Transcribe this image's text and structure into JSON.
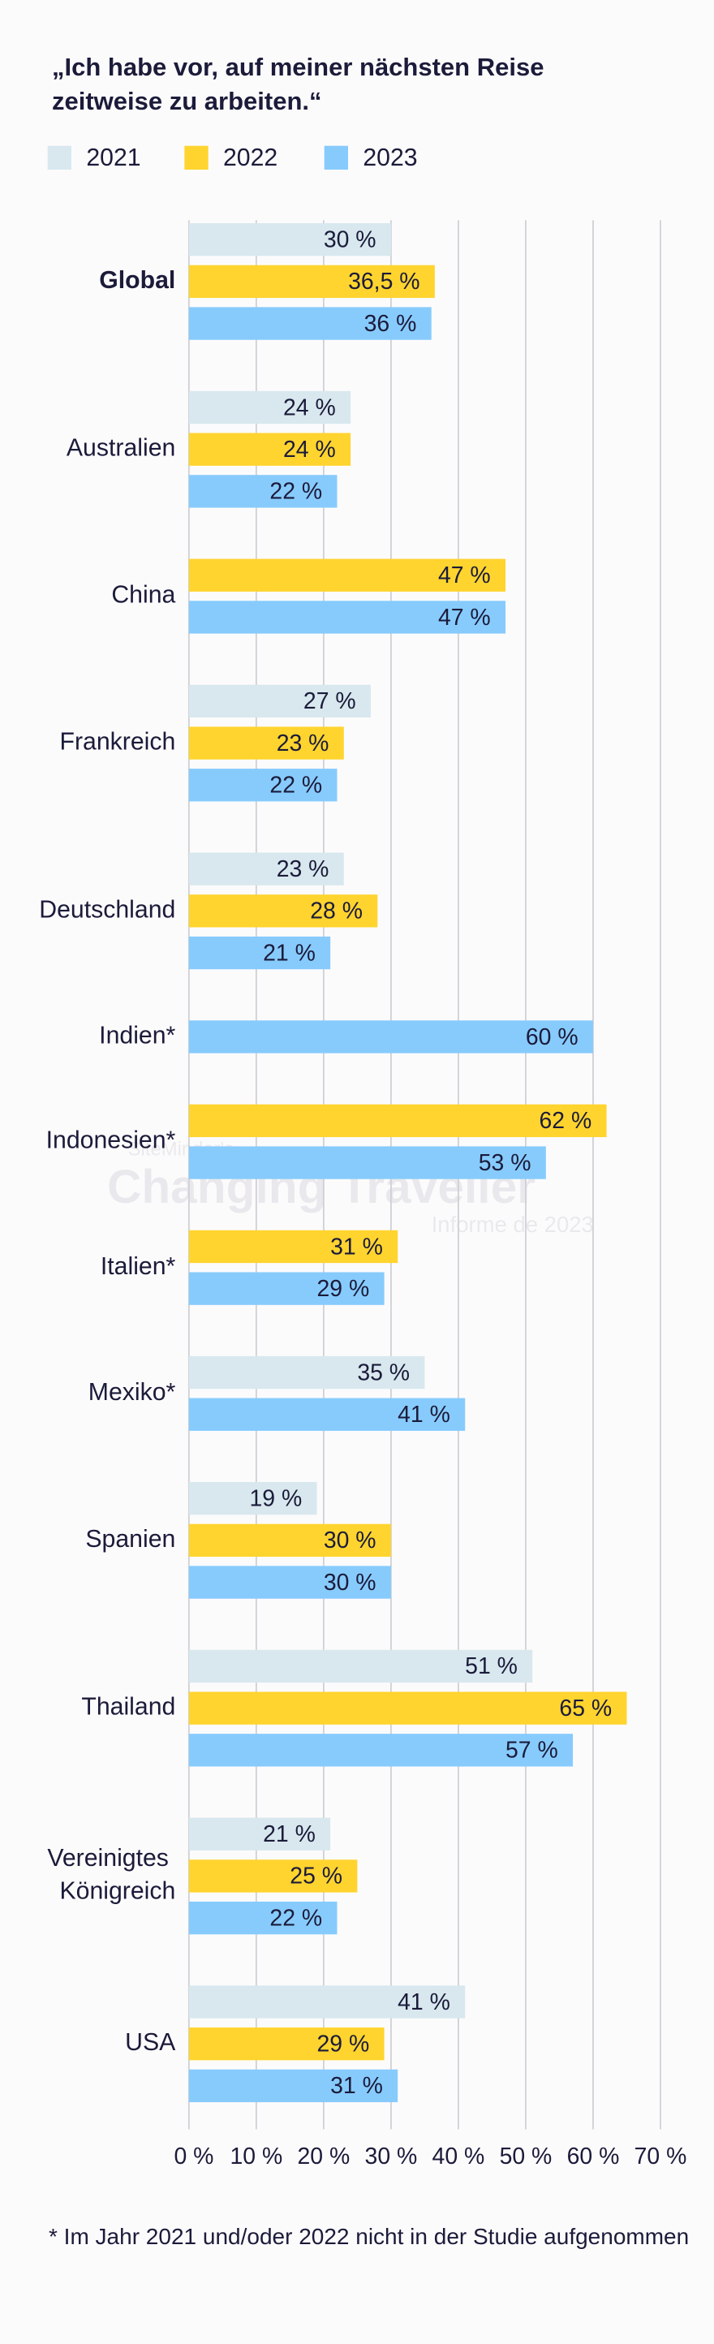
{
  "chart_data": {
    "type": "bar",
    "orientation": "horizontal",
    "title": "„Ich habe vor, auf meiner nächsten Reise zeitweise zu arbeiten.“",
    "footnote": "* Im Jahr 2021 und/oder 2022 nicht in der Studie aufgenommen",
    "watermark": [
      "SiteMinder's",
      "Changing Traveller",
      "Informe de 2023"
    ],
    "categories": [
      "Global",
      "Australien",
      "China",
      "Frankreich",
      "Deutschland",
      "Indien*",
      "Indonesien*",
      "Italien*",
      "Mexiko*",
      "Spanien",
      "Thailand",
      "Vereinigtes Königreich",
      "USA"
    ],
    "series": [
      {
        "name": "2021",
        "color": "#d8e8ee",
        "values": [
          30,
          24,
          null,
          27,
          23,
          null,
          null,
          null,
          35,
          19,
          51,
          21,
          41
        ],
        "value_labels": [
          "30 %",
          "24 %",
          null,
          "27 %",
          "23 %",
          null,
          null,
          null,
          "35 %",
          "19 %",
          "51 %",
          "21 %",
          "41 %"
        ]
      },
      {
        "name": "2022",
        "color": "#ffd42e",
        "values": [
          36.5,
          24,
          47,
          23,
          28,
          null,
          62,
          31,
          null,
          30,
          65,
          25,
          29
        ],
        "value_labels": [
          "36,5 %",
          "24 %",
          "47 %",
          "23 %",
          "28 %",
          null,
          "62 %",
          "31 %",
          null,
          "30 %",
          "65 %",
          "25 %",
          "29 %"
        ]
      },
      {
        "name": "2023",
        "color": "#87cbfd",
        "values": [
          36,
          22,
          47,
          22,
          21,
          60,
          53,
          29,
          41,
          30,
          57,
          22,
          31
        ],
        "value_labels": [
          "36 %",
          "22 %",
          "47 %",
          "22 %",
          "21 %",
          "60 %",
          "53 %",
          "29 %",
          "41 %",
          "30 %",
          "57 %",
          "22 %",
          "31 %"
        ]
      }
    ],
    "xlim": [
      0,
      70
    ],
    "xticks": [
      {
        "value": 0,
        "label": "0 %"
      },
      {
        "value": 10,
        "label": "10 %"
      },
      {
        "value": 20,
        "label": "20 %"
      },
      {
        "value": 30,
        "label": "30 %"
      },
      {
        "value": 40,
        "label": "40 %"
      },
      {
        "value": 50,
        "label": "50 %"
      },
      {
        "value": 60,
        "label": "60 %"
      },
      {
        "value": 70,
        "label": "70 %"
      }
    ],
    "grid": true,
    "legend": "top"
  }
}
